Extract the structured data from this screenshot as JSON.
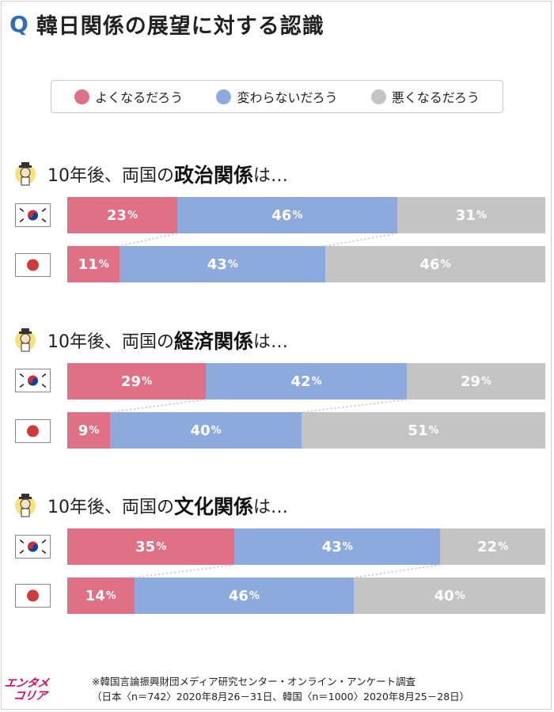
{
  "title": {
    "q_mark": "Q",
    "text": "韓日関係の展望に対する認識"
  },
  "colors": {
    "good": "#e07085",
    "same": "#8daadf",
    "bad": "#c4c4c4",
    "accent": "#2f6fb7",
    "connector": "#cccccc"
  },
  "legend": [
    {
      "label": "よくなるだろう",
      "color": "#e07085"
    },
    {
      "label": "変わらないだろう",
      "color": "#8daadf"
    },
    {
      "label": "悪くなるだろう",
      "color": "#c4c4c4"
    }
  ],
  "icons": {
    "person": "person-with-hat-icon",
    "korea_flag": "south-korea-flag-icon",
    "japan_flag": "japan-flag-icon",
    "logo": "entame-korea-logo"
  },
  "chart_data": {
    "type": "bar",
    "orientation": "horizontal-stacked-100",
    "series_names": [
      "よくなるだろう",
      "変わらないだろう",
      "悪くなるだろう"
    ],
    "sections": [
      {
        "prefix": "10年後、両国の",
        "topic": "政治関係",
        "suffix": "は…",
        "rows": [
          {
            "country": "韓国",
            "values": [
              23,
              46,
              31
            ]
          },
          {
            "country": "日本",
            "values": [
              11,
              43,
              46
            ]
          }
        ]
      },
      {
        "prefix": "10年後、両国の",
        "topic": "経済関係",
        "suffix": "は…",
        "rows": [
          {
            "country": "韓国",
            "values": [
              29,
              42,
              29
            ]
          },
          {
            "country": "日本",
            "values": [
              9,
              40,
              51
            ]
          }
        ]
      },
      {
        "prefix": "10年後、両国の",
        "topic": "文化関係",
        "suffix": "は…",
        "rows": [
          {
            "country": "韓国",
            "values": [
              35,
              43,
              22
            ]
          },
          {
            "country": "日本",
            "values": [
              14,
              46,
              40
            ]
          }
        ]
      }
    ],
    "unit": "%"
  },
  "footer": {
    "logo_line1": "エンタメ",
    "logo_line2": "コリア",
    "source_line1": "※韓国言論振興財団メディア研究センター・オンライン・アンケート調査",
    "source_line2": "（日本〈n＝742〉2020年8月26－31日、韓国〈n＝1000〉2020年8月25－28日）"
  }
}
